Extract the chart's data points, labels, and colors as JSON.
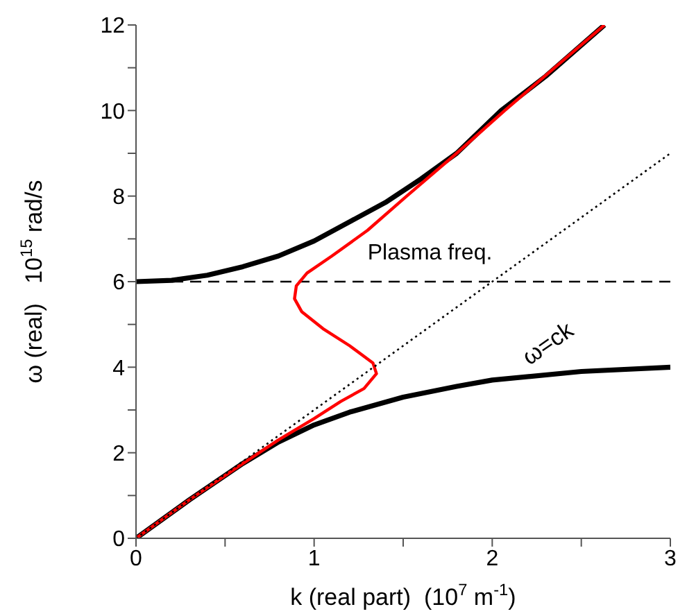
{
  "chart_data": {
    "type": "line",
    "xlabel": "k (real part)  (10$^{7}$ m$^{-1}$)",
    "ylabel": "ω (real)   10$^{15}$ rad/s",
    "xlim": [
      0,
      3
    ],
    "ylim": [
      0,
      12
    ],
    "xticks": [
      0,
      {
        "value": 0.5,
        "label": null
      },
      1,
      {
        "value": 1.5,
        "label": null
      },
      2,
      {
        "value": 2.5,
        "label": null
      },
      3
    ],
    "yticks": [
      0,
      {
        "value": 1,
        "label": null
      },
      2,
      {
        "value": 3,
        "label": null
      },
      4,
      {
        "value": 5,
        "label": null
      },
      6,
      {
        "value": 7,
        "label": null
      },
      8,
      {
        "value": 9,
        "label": null
      },
      10,
      {
        "value": 11,
        "label": null
      },
      12
    ],
    "marker": "none",
    "series": [
      {
        "color": "#000000",
        "line_style": "solid",
        "x": [
          0,
          0.2,
          0.4,
          0.6,
          0.8,
          1.0,
          1.2,
          1.4,
          1.6,
          1.8,
          2.05,
          2.3,
          2.63
        ],
        "values": [
          6,
          6.03,
          6.15,
          6.35,
          6.6,
          6.95,
          7.4,
          7.85,
          8.4,
          9.0,
          10,
          10.8,
          12
        ]
      },
      {
        "color": "#000000",
        "line_style": "solid",
        "x": [
          0,
          0.3,
          0.6,
          0.8,
          1.0,
          1.2,
          1.5,
          1.8,
          2.0,
          2.5,
          3
        ],
        "values": [
          0,
          0.9,
          1.75,
          2.25,
          2.65,
          2.95,
          3.3,
          3.55,
          3.7,
          3.9,
          4.0
        ]
      },
      {
        "color": "#ff0000",
        "line_style": "solid",
        "x": [
          0,
          0.3,
          0.6,
          0.8,
          1.0,
          1.15,
          1.28,
          1.35,
          1.33,
          1.2,
          1.05,
          0.93,
          0.89,
          0.9,
          0.96,
          1.1,
          1.3,
          1.52,
          1.8,
          2.07,
          2.35,
          2.63
        ],
        "values": [
          0,
          0.9,
          1.75,
          2.3,
          2.8,
          3.2,
          3.5,
          3.85,
          4.1,
          4.5,
          4.9,
          5.3,
          5.6,
          5.9,
          6.2,
          6.6,
          7.2,
          8,
          9,
          10,
          11,
          12
        ]
      },
      {
        "color": "#000000",
        "line_style": "dotted",
        "x": [
          0,
          3
        ],
        "values": [
          0,
          9
        ]
      }
    ],
    "ref_lines": [
      {
        "axis": "y",
        "value": 6,
        "label": "Plasma freq.",
        "color": "#000000",
        "line_style": "dashed"
      }
    ],
    "annotations": [
      "ω=ck"
    ]
  }
}
